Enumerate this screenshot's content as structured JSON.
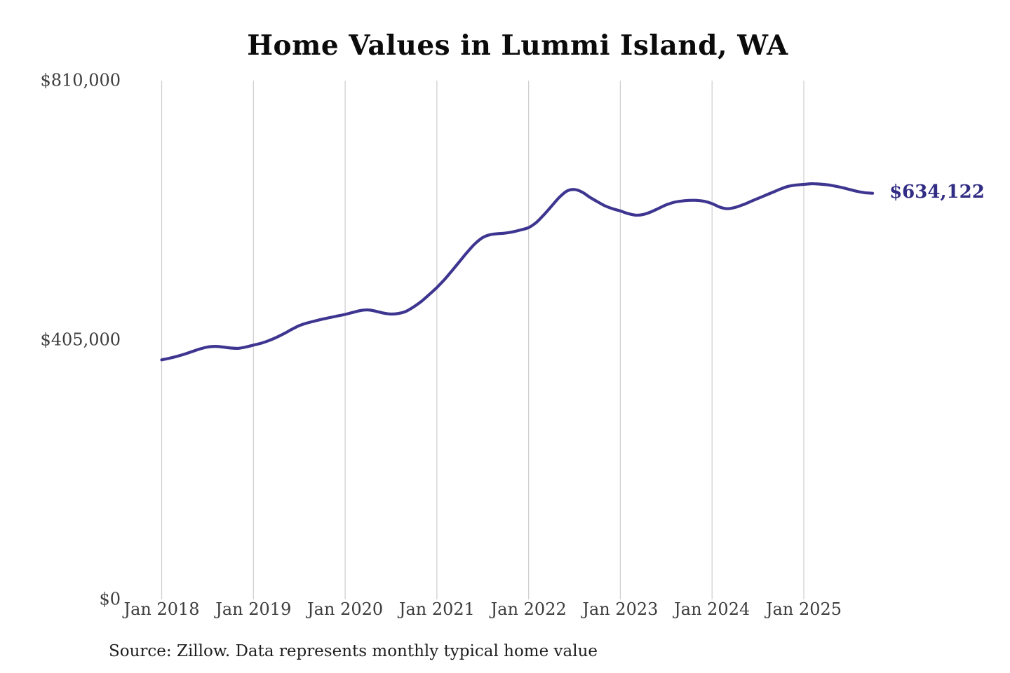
{
  "title": "Home Values in Lummi Island, WA",
  "source_note": "Source: Zillow. Data represents monthly typical home value",
  "colors": {
    "line": "#3d3590",
    "end_label": "#312c84",
    "gridline": "#cccccc",
    "axis_label": "#3d3d3d",
    "title": "#0b0b0b",
    "background": "#ffffff"
  },
  "chart_data": {
    "type": "line",
    "title": "Home Values in Lummi Island, WA",
    "xlabel": "",
    "ylabel": "",
    "x_start": "2018-01",
    "x_step": "1 month",
    "n_points": 94,
    "ylim": [
      0,
      810000
    ],
    "y_ticks": [
      0,
      405000,
      810000
    ],
    "y_tick_labels": [
      "$0",
      "$405,000",
      "$810,000"
    ],
    "x_tick_labels": [
      "Jan 2018",
      "Jan 2019",
      "Jan 2020",
      "Jan 2021",
      "Jan 2022",
      "Jan 2023",
      "Jan 2024",
      "Jan 2025"
    ],
    "x_tick_month_indices": [
      0,
      12,
      24,
      36,
      48,
      60,
      72,
      84
    ],
    "grid": "vertical-only",
    "legend": "none",
    "end_label": "$634,122",
    "end_value": 634122,
    "series": [
      {
        "name": "Typical home value",
        "color": "#3d3590",
        "values": [
          374000,
          376500,
          379500,
          383000,
          387000,
          391000,
          394000,
          395000,
          394000,
          392500,
          392000,
          394000,
          397000,
          400000,
          404000,
          409000,
          415000,
          421500,
          427500,
          431500,
          434500,
          437500,
          440000,
          442500,
          445000,
          448000,
          451000,
          452000,
          450000,
          447000,
          445500,
          446500,
          450000,
          457000,
          465500,
          476000,
          487000,
          499500,
          513500,
          528000,
          542500,
          555500,
          565000,
          569500,
          571000,
          572000,
          574000,
          577000,
          580500,
          588500,
          600500,
          614000,
          627500,
          637500,
          640000,
          636000,
          628000,
          621000,
          614500,
          610000,
          606500,
          602500,
          600000,
          601000,
          605000,
          610500,
          616000,
          620000,
          622000,
          623000,
          623000,
          621500,
          618000,
          612500,
          610000,
          612000,
          616000,
          621000,
          626000,
          631000,
          636000,
          641000,
          645000,
          647000,
          648000,
          649000,
          648500,
          647500,
          645500,
          643000,
          640000,
          637000,
          635000,
          634122
        ]
      }
    ]
  }
}
